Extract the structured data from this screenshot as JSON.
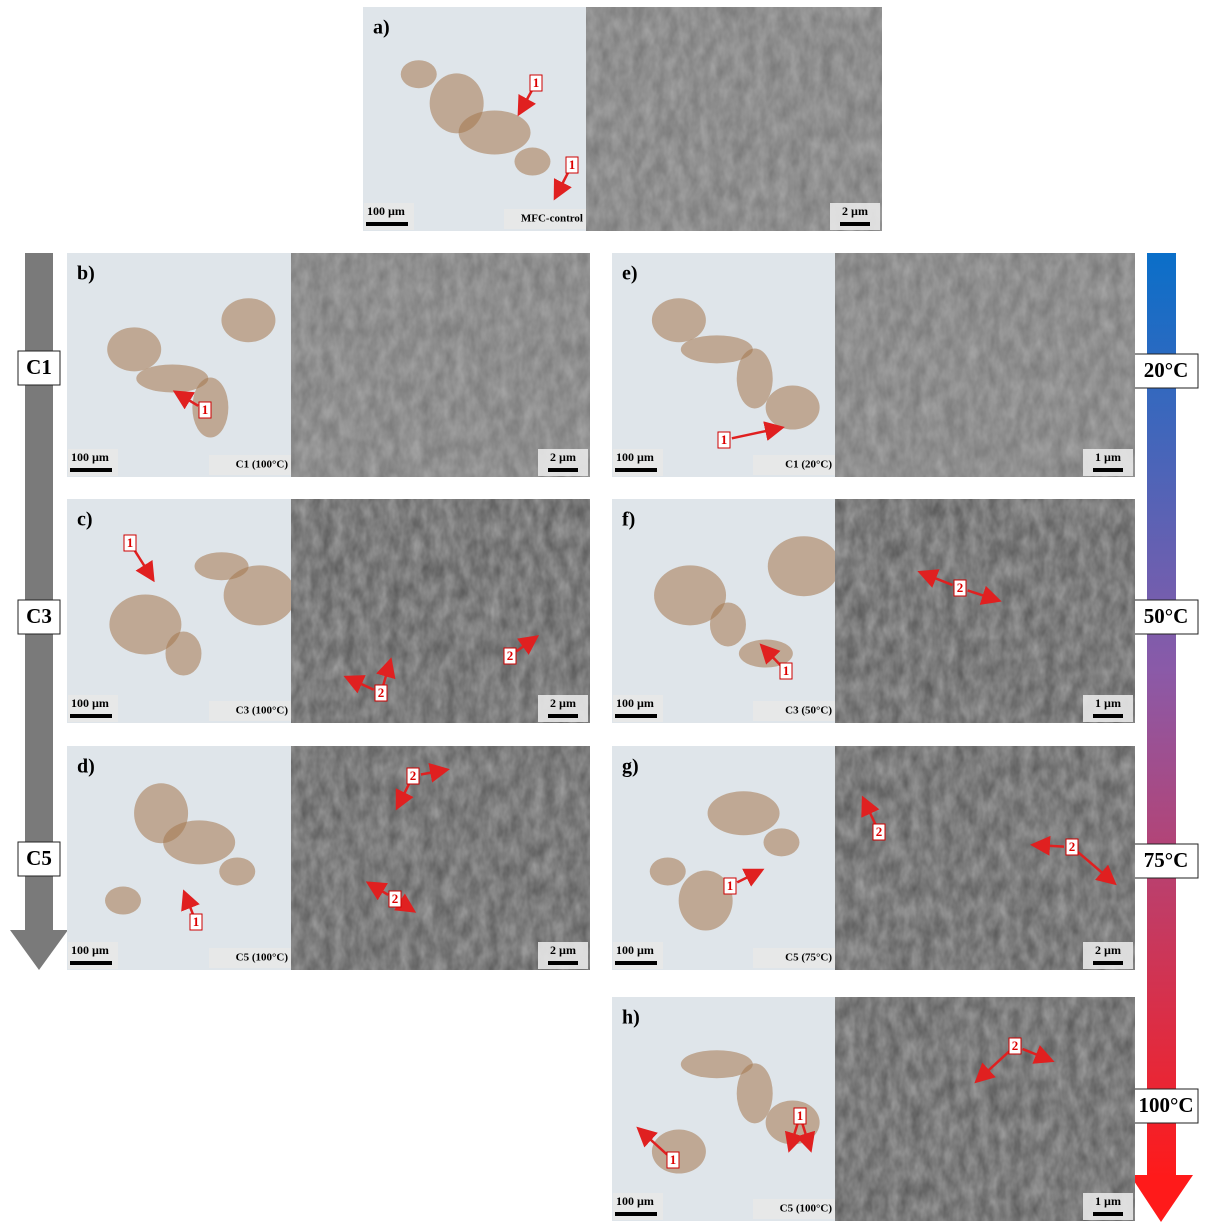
{
  "left_axis": {
    "labels": [
      "C1",
      "C3",
      "C5"
    ]
  },
  "right_axis": {
    "labels": [
      "20°C",
      "50°C",
      "75°C",
      "100°C"
    ]
  },
  "panels": [
    {
      "letter": "a)",
      "optical_scale": "100 µm",
      "caption": "MFC-control",
      "sem_scale": "2 µm",
      "markers": [
        "1",
        "1"
      ]
    },
    {
      "letter": "b)",
      "optical_scale": "100 µm",
      "caption": "C1 (100°C)",
      "sem_scale": "2 µm",
      "markers": [
        "1"
      ]
    },
    {
      "letter": "c)",
      "optical_scale": "100 µm",
      "caption": "C3 (100°C)",
      "sem_scale": "2 µm",
      "markers": [
        "1",
        "2",
        "2"
      ]
    },
    {
      "letter": "d)",
      "optical_scale": "100 µm",
      "caption": "C5 (100°C)",
      "sem_scale": "2 µm",
      "markers": [
        "1",
        "2",
        "2"
      ]
    },
    {
      "letter": "e)",
      "optical_scale": "100 µm",
      "caption": "C1 (20°C)",
      "sem_scale": "1 µm",
      "markers": [
        "1"
      ]
    },
    {
      "letter": "f)",
      "optical_scale": "100 µm",
      "caption": "C3 (50°C)",
      "sem_scale": "1 µm",
      "markers": [
        "1",
        "2"
      ]
    },
    {
      "letter": "g)",
      "optical_scale": "100 µm",
      "caption": "C5 (75°C)",
      "sem_scale": "2 µm",
      "markers": [
        "1",
        "2",
        "2"
      ]
    },
    {
      "letter": "h)",
      "optical_scale": "100 µm",
      "caption": "C5 (100°C)",
      "sem_scale": "1 µm",
      "markers": [
        "1",
        "1",
        "2"
      ]
    }
  ]
}
